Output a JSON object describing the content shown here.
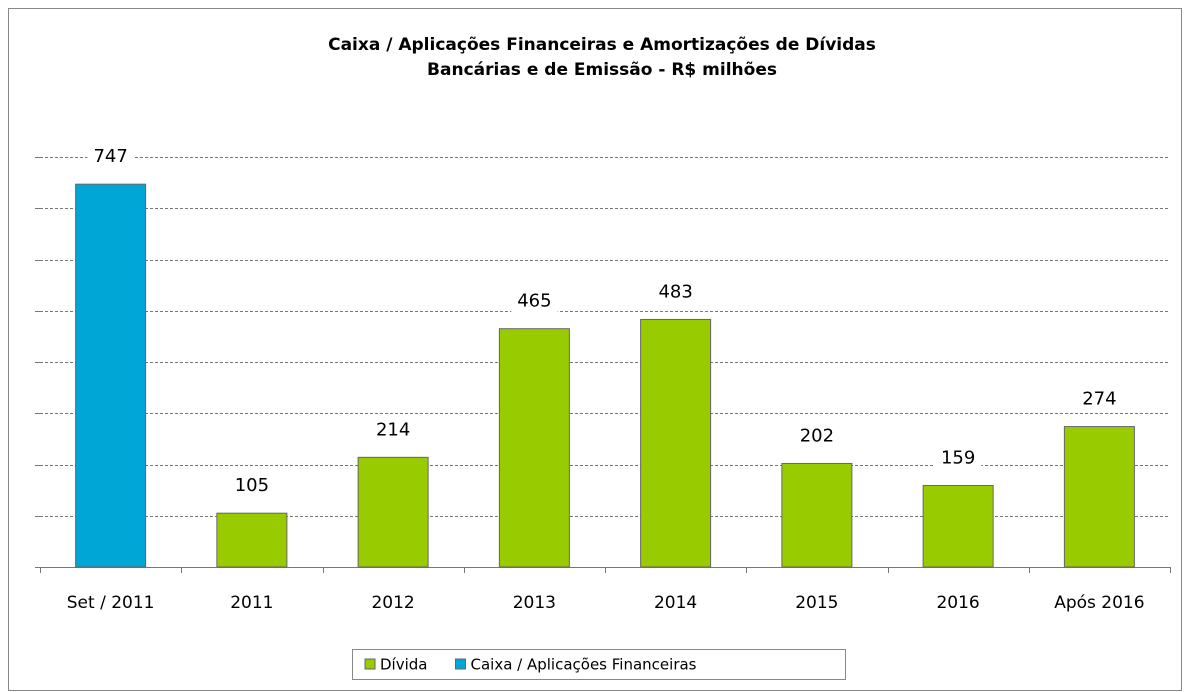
{
  "chart_data": {
    "type": "bar",
    "title": [
      "Caixa / Aplicações Financeiras e Amortizações de Dívidas",
      "Bancárias e de Emissão - R$ milhões"
    ],
    "categories": [
      "Set / 2011",
      "2011",
      "2012",
      "2013",
      "2014",
      "2015",
      "2016",
      "Após 2016"
    ],
    "series": [
      {
        "name": "Dívida",
        "color": "#99cc00",
        "values": [
          null,
          105,
          214,
          465,
          483,
          202,
          159,
          274
        ]
      },
      {
        "name": "Caixa / Aplicações Financeiras",
        "color": "#00a6d6",
        "values": [
          747,
          null,
          null,
          null,
          null,
          null,
          null,
          null
        ]
      }
    ],
    "ylim": [
      0,
      800
    ],
    "yticks": [
      0,
      100,
      200,
      300,
      400,
      500,
      600,
      700,
      800
    ],
    "grid": true
  }
}
